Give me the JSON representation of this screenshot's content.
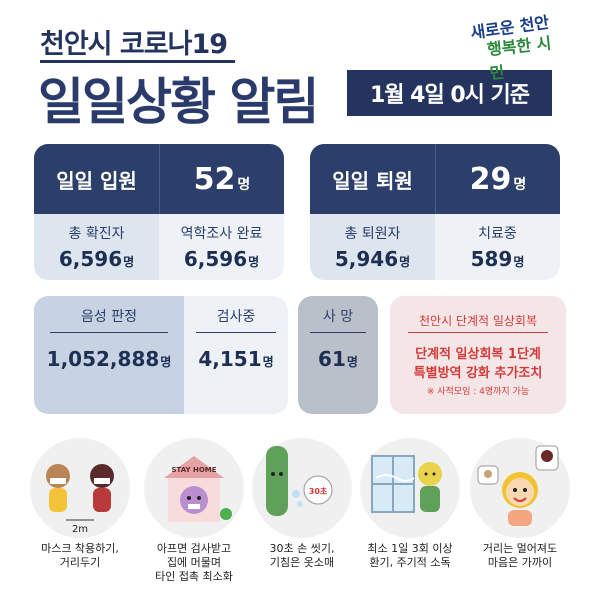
{
  "header": {
    "title_small": "천안시 코로나19",
    "title_big": "일일상황 알림",
    "date": "1월 4일 0시 기준",
    "logo_line1": "새로운 천안",
    "logo_line2": "행복한 시민"
  },
  "admission": {
    "label": "일일 입원",
    "value": "52",
    "unit": "명",
    "total_label": "총 확진자",
    "total_value": "6,596",
    "epi_label": "역학조사 완료",
    "epi_value": "6,596"
  },
  "discharge": {
    "label": "일일 퇴원",
    "value": "29",
    "unit": "명",
    "total_label": "총 퇴원자",
    "total_value": "5,946",
    "treat_label": "치료중",
    "treat_value": "589"
  },
  "tests": {
    "negative_label": "음성 판정",
    "negative_value": "1,052,888",
    "testing_label": "검사중",
    "testing_value": "4,151",
    "unit": "명"
  },
  "deaths": {
    "label": "사 망",
    "value": "61",
    "unit": "명"
  },
  "recovery": {
    "title": "천안시 단계적 일상회복",
    "line1": "단계적 일상회복 1단계",
    "line2": "특별방역 강화 추가조치",
    "note": "※ 사적모임 : 4명까지 가능"
  },
  "tips": [
    {
      "icon": "two-people-mask-icon",
      "line1": "마스크 착용하기,",
      "line2": "거리두기",
      "line3": "",
      "distance": "2m"
    },
    {
      "icon": "stay-home-icon",
      "line1": "아프면 검사받고",
      "line2": "집에 머물며",
      "line3": "타인 접촉 최소화",
      "sign": "STAY HOME"
    },
    {
      "icon": "hand-wash-icon",
      "line1": "30초 손 씻기,",
      "line2": "기침은 옷소매",
      "line3": "",
      "timer": "30초"
    },
    {
      "icon": "window-ventilation-icon",
      "line1": "최소 1일 3회 이상",
      "line2": "환기, 주기적 소독",
      "line3": ""
    },
    {
      "icon": "video-call-icon",
      "line1": "거리는 멀어져도",
      "line2": "마음은 가까이",
      "line3": ""
    }
  ],
  "colors": {
    "navy": "#2c3e6a",
    "light": "#dde5ef",
    "lighter": "#eef2f7",
    "grey": "#b9c0c9",
    "pink": "#f4e6e6",
    "red": "#d33a3a"
  }
}
